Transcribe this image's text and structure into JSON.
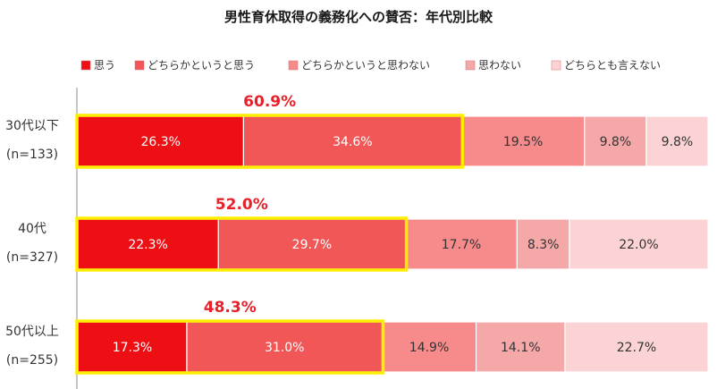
{
  "chart_data": {
    "type": "bar",
    "orientation": "horizontal",
    "stacked": true,
    "title": "男性育休取得の義務化への賛否：年代別比較",
    "xlabel": "",
    "ylabel": "",
    "xlim": [
      0,
      100
    ],
    "grid": false,
    "legend_position": "top",
    "categories": [
      "30代以下",
      "40代",
      "50代以上"
    ],
    "sample_sizes": [
      "(n=133)",
      "(n=327)",
      "(n=255)"
    ],
    "series": [
      {
        "name": "思う",
        "color": "#ee0f14",
        "values": [
          26.3,
          22.3,
          17.3
        ]
      },
      {
        "name": "どちらかというと思う",
        "color": "#f25757",
        "values": [
          34.6,
          29.7,
          31.0
        ]
      },
      {
        "name": "どちらかというと思わない",
        "color": "#f78a8b",
        "values": [
          19.5,
          17.7,
          14.9
        ]
      },
      {
        "name": "思わない",
        "color": "#f5a8a8",
        "values": [
          9.8,
          8.3,
          14.1
        ]
      },
      {
        "name": "どちらとも言えない",
        "color": "#fcd3d4",
        "values": [
          9.8,
          22.0,
          22.7
        ]
      }
    ],
    "value_labels": [
      [
        "26.3%",
        "34.6%",
        "19.5%",
        "9.8%",
        "9.8%"
      ],
      [
        "22.3%",
        "29.7%",
        "17.7%",
        "8.3%",
        "22.0%"
      ],
      [
        "17.3%",
        "31.0%",
        "14.9%",
        "14.1%",
        "22.7%"
      ]
    ],
    "highlight": {
      "series_count": 2,
      "color": "#ffee00",
      "totals": [
        "60.9%",
        "52.0%",
        "48.3%"
      ]
    }
  }
}
